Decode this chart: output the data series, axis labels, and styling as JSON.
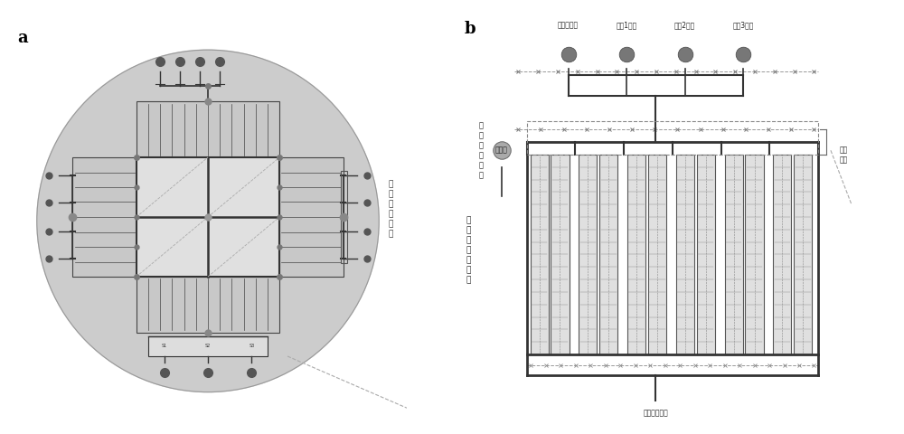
{
  "title_a": "a",
  "title_b": "b",
  "bg_color": "#ffffff",
  "circle_bg": "#cccccc",
  "dark": "#333333",
  "mid": "#666666",
  "light": "#aaaaaa",
  "chan_bg": "#cccccc",
  "core_bg": "#e0e0e0",
  "labels_top_b": [
    "培养基入口",
    "药物1入口",
    "药物2入口",
    "药物3入口"
  ],
  "label_waste": "废液池",
  "label_left1": "组合生成单元",
  "label_left2": "不同药物浓度或",
  "label_valve": "微阀\n结构",
  "label_bottom": "细胞接种通路"
}
